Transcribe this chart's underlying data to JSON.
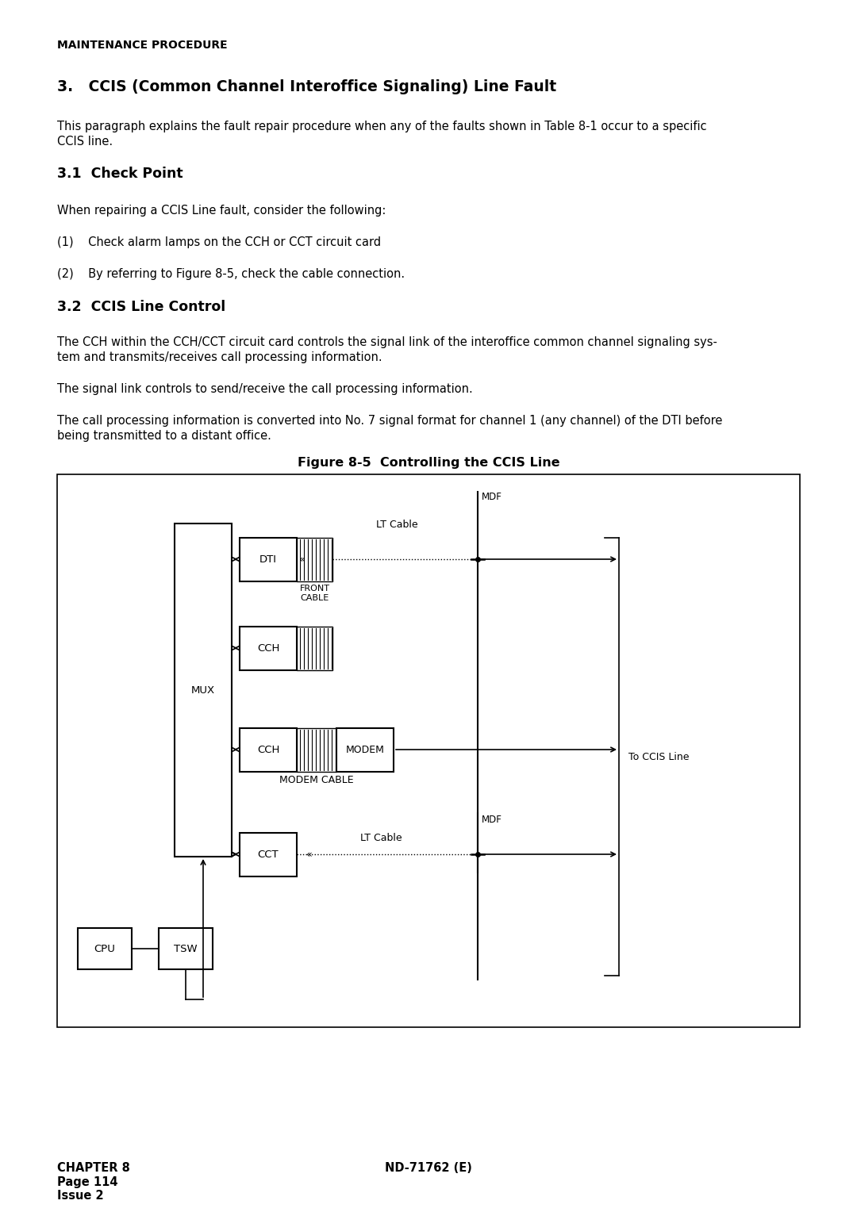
{
  "page_bg": "#ffffff",
  "header_text": "MAINTENANCE PROCEDURE",
  "section3_title": "3.   CCIS (Common Channel Interoffice Signaling) Line Fault",
  "para1_l1": "This paragraph explains the fault repair procedure when any of the faults shown in Table 8-1 occur to a specific",
  "para1_l2": "CCIS line.",
  "section31_title": "3.1  Check Point",
  "para2": "When repairing a CCIS Line fault, consider the following:",
  "item1": "(1)    Check alarm lamps on the CCH or CCT circuit card",
  "item2": "(2)    By referring to Figure 8-5, check the cable connection.",
  "section32_title": "3.2  CCIS Line Control",
  "para3_l1": "The CCH within the CCH/CCT circuit card controls the signal link of the interoffice common channel signaling sys-",
  "para3_l2": "tem and transmits/receives call processing information.",
  "para4": "The signal link controls to send/receive the call processing information.",
  "para5_l1": "The call processing information is converted into No. 7 signal format for channel 1 (any channel) of the DTI before",
  "para5_l2": "being transmitted to a distant office.",
  "fig_caption": "Figure 8-5  Controlling the CCIS Line",
  "footer_chapter": "CHAPTER 8",
  "footer_page": "Page 114",
  "footer_issue": "Issue 2",
  "footer_right": "ND-71762 (E)"
}
